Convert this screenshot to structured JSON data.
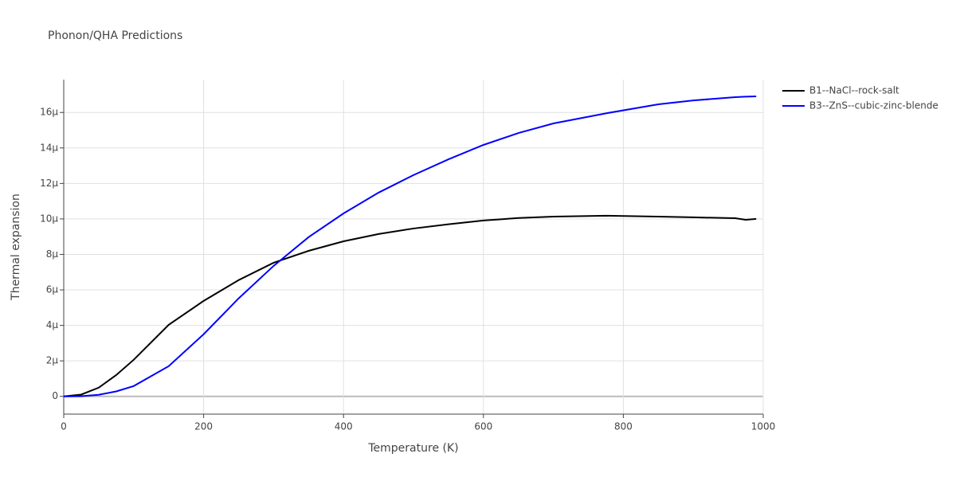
{
  "chart_data": {
    "type": "line",
    "title": "Phonon/QHA Predictions",
    "x_label": "Temperature (K)",
    "y_label": "Thermal expansion",
    "x": [
      0,
      25,
      50,
      75,
      100,
      150,
      200,
      250,
      300,
      350,
      400,
      450,
      500,
      550,
      600,
      650,
      700,
      775,
      850,
      900,
      960,
      975,
      990
    ],
    "series": [
      {
        "name": "B1--NaCl--rock-salt",
        "color": "#000000",
        "values": [
          0,
          1e-07,
          4.9e-07,
          1.2e-06,
          2.06e-06,
          4.03e-06,
          5.38e-06,
          6.55e-06,
          7.53e-06,
          8.2e-06,
          8.74e-06,
          9.15e-06,
          9.46e-06,
          9.7e-06,
          9.91e-06,
          1.005e-05,
          1.013e-05,
          1.018e-05,
          1.013e-05,
          1.009e-05,
          1.004e-05,
          9.95e-06,
          1e-05
        ]
      },
      {
        "name": "B3--ZnS--cubic-zinc-blende",
        "color": "#0000ff",
        "values": [
          0,
          1e-08,
          9e-08,
          2.8e-07,
          5.8e-07,
          1.7e-06,
          3.5e-06,
          5.52e-06,
          7.35e-06,
          8.97e-06,
          1.031e-05,
          1.148e-05,
          1.247e-05,
          1.336e-05,
          1.417e-05,
          1.484e-05,
          1.538e-05,
          1.595e-05,
          1.646e-05,
          1.668e-05,
          1.686e-05,
          1.689e-05,
          1.691e-05
        ]
      }
    ],
    "xlim": [
      0,
      1000
    ],
    "xticks": [
      0,
      200,
      400,
      600,
      800,
      1000
    ],
    "ylim": [
      -1e-06,
      1.785e-05
    ],
    "yticks": [
      0,
      {
        "value": 2e-06,
        "label": "2μ"
      },
      {
        "value": 4e-06,
        "label": "4μ"
      },
      {
        "value": 6e-06,
        "label": "6μ"
      },
      {
        "value": 8e-06,
        "label": "8μ"
      },
      {
        "value": 1e-05,
        "label": "10μ"
      },
      {
        "value": 1.2e-05,
        "label": "12μ"
      },
      {
        "value": 1.4e-05,
        "label": "14μ"
      },
      {
        "value": 1.6e-05,
        "label": "16μ"
      }
    ],
    "grid": true,
    "legend": "right"
  }
}
